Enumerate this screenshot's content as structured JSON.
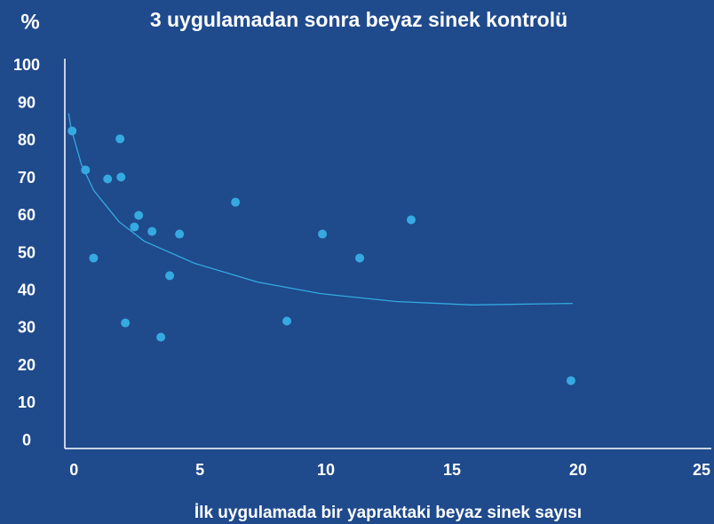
{
  "chart_data": {
    "type": "scatter",
    "title": "3 uygulamadan sonra beyaz sinek kontrolü",
    "y_label": "%",
    "x_label": "İlk uygulamada bir yapraktaki beyaz sinek sayısı",
    "xlim": [
      -0.15,
      25.5
    ],
    "ylim": [
      -2,
      102
    ],
    "xticks": [
      0,
      5,
      10,
      15,
      20,
      25
    ],
    "yticks": [
      0,
      10,
      20,
      30,
      40,
      50,
      60,
      70,
      80,
      90,
      100
    ],
    "grid": false,
    "series": [
      {
        "kind": "points",
        "color": "#35a9e0",
        "x": [
          0.14,
          0.67,
          0.99,
          1.55,
          2.04,
          2.08,
          2.25,
          2.61,
          2.78,
          3.31,
          3.66,
          4.01,
          4.4,
          6.62,
          8.66,
          10.07,
          11.55,
          13.59,
          19.93
        ],
        "values": [
          82.7,
          72.3,
          48.8,
          69.9,
          80.6,
          70.4,
          31.5,
          57.1,
          60.2,
          55.9,
          27.7,
          44.1,
          55.2,
          63.7,
          32.0,
          55.2,
          48.8,
          59.0,
          16.1
        ]
      },
      {
        "kind": "line",
        "color": "#35a9e0",
        "x": [
          0,
          0.1,
          0.5,
          1,
          2,
          3,
          5,
          7.5,
          10,
          13,
          16,
          20
        ],
        "values": [
          87.4,
          83.4,
          73.9,
          66.8,
          58.5,
          53.3,
          47.4,
          42.4,
          39.3,
          37.2,
          36.3,
          36.7
        ]
      }
    ]
  }
}
